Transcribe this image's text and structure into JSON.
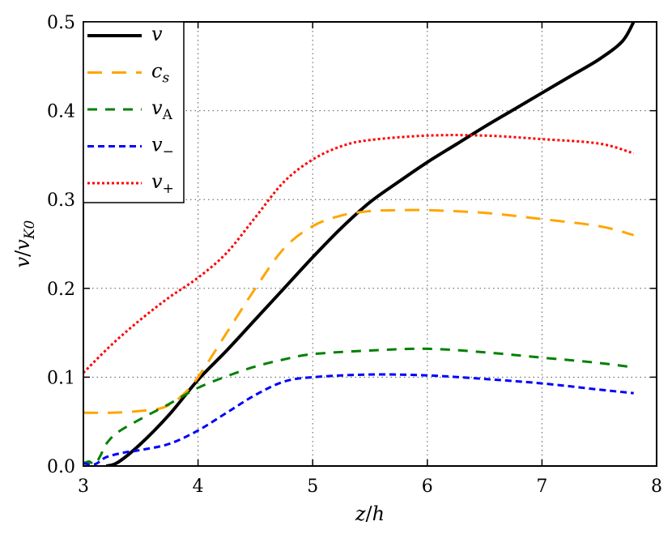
{
  "chart_data": {
    "type": "line",
    "xlabel": {
      "num": "z",
      "den": "h"
    },
    "ylabel": {
      "num": "v",
      "den": "v",
      "den_sub": "K0"
    },
    "xlim": [
      3,
      8
    ],
    "ylim": [
      0,
      0.5
    ],
    "xticks": [
      "3",
      "4",
      "5",
      "6",
      "7",
      "8"
    ],
    "yticks": [
      "0.0",
      "0.1",
      "0.2",
      "0.3",
      "0.4",
      "0.5"
    ],
    "grid": true,
    "legend_position": "top-left",
    "series": [
      {
        "name": "v",
        "name_sub": "",
        "color": "#000000",
        "style": "solid",
        "x": [
          3.2,
          3.3,
          3.5,
          3.75,
          4.0,
          4.25,
          4.5,
          4.75,
          5.0,
          5.25,
          5.5,
          5.75,
          6.0,
          6.25,
          6.5,
          6.75,
          7.0,
          7.25,
          7.5,
          7.7,
          7.8
        ],
        "y": [
          0.0,
          0.004,
          0.025,
          0.058,
          0.097,
          0.13,
          0.165,
          0.2,
          0.235,
          0.268,
          0.297,
          0.32,
          0.342,
          0.362,
          0.382,
          0.401,
          0.42,
          0.439,
          0.458,
          0.478,
          0.5
        ]
      },
      {
        "name": "c",
        "name_sub": "s",
        "color": "#ffa500",
        "style": "longdash",
        "x": [
          3.0,
          3.25,
          3.5,
          3.7,
          3.85,
          4.0,
          4.25,
          4.5,
          4.75,
          5.0,
          5.25,
          5.5,
          5.75,
          6.0,
          6.5,
          7.0,
          7.5,
          7.8
        ],
        "y": [
          0.06,
          0.06,
          0.062,
          0.066,
          0.078,
          0.1,
          0.15,
          0.2,
          0.245,
          0.27,
          0.282,
          0.287,
          0.288,
          0.288,
          0.285,
          0.278,
          0.27,
          0.26
        ]
      },
      {
        "name": "v",
        "name_sub": "A",
        "color": "#008000",
        "style": "dash",
        "x": [
          3.0,
          3.05,
          3.1,
          3.15,
          3.2,
          3.3,
          3.5,
          3.75,
          4.0,
          4.25,
          4.5,
          4.75,
          5.0,
          5.5,
          6.0,
          6.5,
          7.0,
          7.5,
          7.8
        ],
        "y": [
          0.003,
          0.005,
          0.002,
          0.012,
          0.025,
          0.038,
          0.053,
          0.07,
          0.088,
          0.101,
          0.112,
          0.12,
          0.126,
          0.13,
          0.132,
          0.128,
          0.122,
          0.116,
          0.111
        ]
      },
      {
        "name": "v",
        "name_sub": "−",
        "color": "#0000ff",
        "style": "shortdash",
        "x": [
          3.0,
          3.1,
          3.2,
          3.35,
          3.5,
          3.75,
          4.0,
          4.25,
          4.5,
          4.75,
          5.0,
          5.5,
          6.0,
          6.5,
          7.0,
          7.5,
          7.8
        ],
        "y": [
          0.003,
          0.002,
          0.01,
          0.015,
          0.018,
          0.025,
          0.04,
          0.06,
          0.08,
          0.095,
          0.1,
          0.103,
          0.102,
          0.098,
          0.093,
          0.086,
          0.082
        ]
      },
      {
        "name": "v",
        "name_sub": "+",
        "color": "#ff0000",
        "style": "dotted",
        "x": [
          3.0,
          3.25,
          3.5,
          3.75,
          4.0,
          4.25,
          4.5,
          4.75,
          5.0,
          5.25,
          5.5,
          6.0,
          6.5,
          7.0,
          7.5,
          7.8
        ],
        "y": [
          0.105,
          0.137,
          0.165,
          0.19,
          0.212,
          0.24,
          0.28,
          0.32,
          0.345,
          0.36,
          0.367,
          0.372,
          0.372,
          0.368,
          0.363,
          0.352
        ]
      }
    ]
  }
}
